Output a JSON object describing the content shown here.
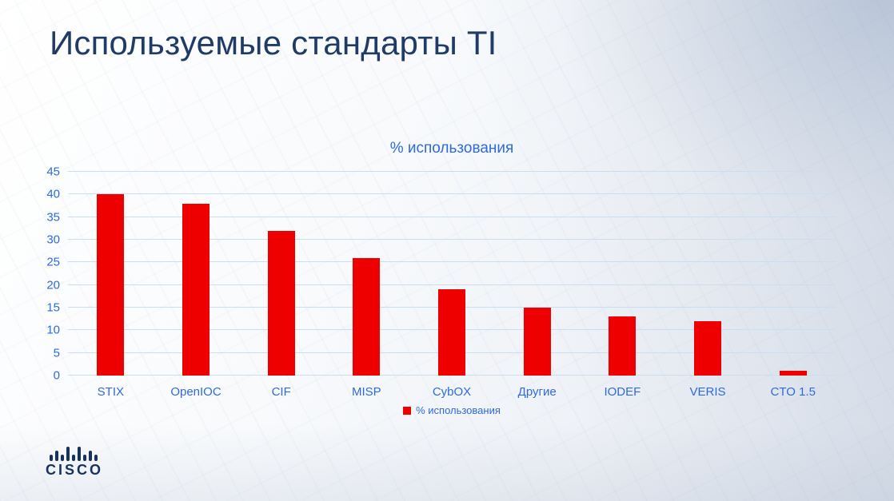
{
  "slide": {
    "title": "Используемые стандарты TI",
    "brand": "CISCO"
  },
  "chart_data": {
    "type": "bar",
    "title": "% использования",
    "categories": [
      "STIX",
      "OpenIOC",
      "CIF",
      "MISP",
      "CybOX",
      "Другие",
      "IODEF",
      "VERIS",
      "CTO 1.5"
    ],
    "values": [
      40,
      38,
      32,
      26,
      19,
      15,
      13,
      12,
      1
    ],
    "legend": [
      "% использования"
    ],
    "legend_position": "bottom",
    "xlabel": "",
    "ylabel": "",
    "ylim": [
      0,
      45
    ],
    "yticks": [
      0,
      5,
      10,
      15,
      20,
      25,
      30,
      35,
      40,
      45
    ],
    "grid": true
  },
  "colors": {
    "bar_red": "#ee0000",
    "chart_blue": "#2e6ae0",
    "grid_blue": "#c9def2",
    "title_navy": "#203b66",
    "logo_navy": "#15335e"
  }
}
